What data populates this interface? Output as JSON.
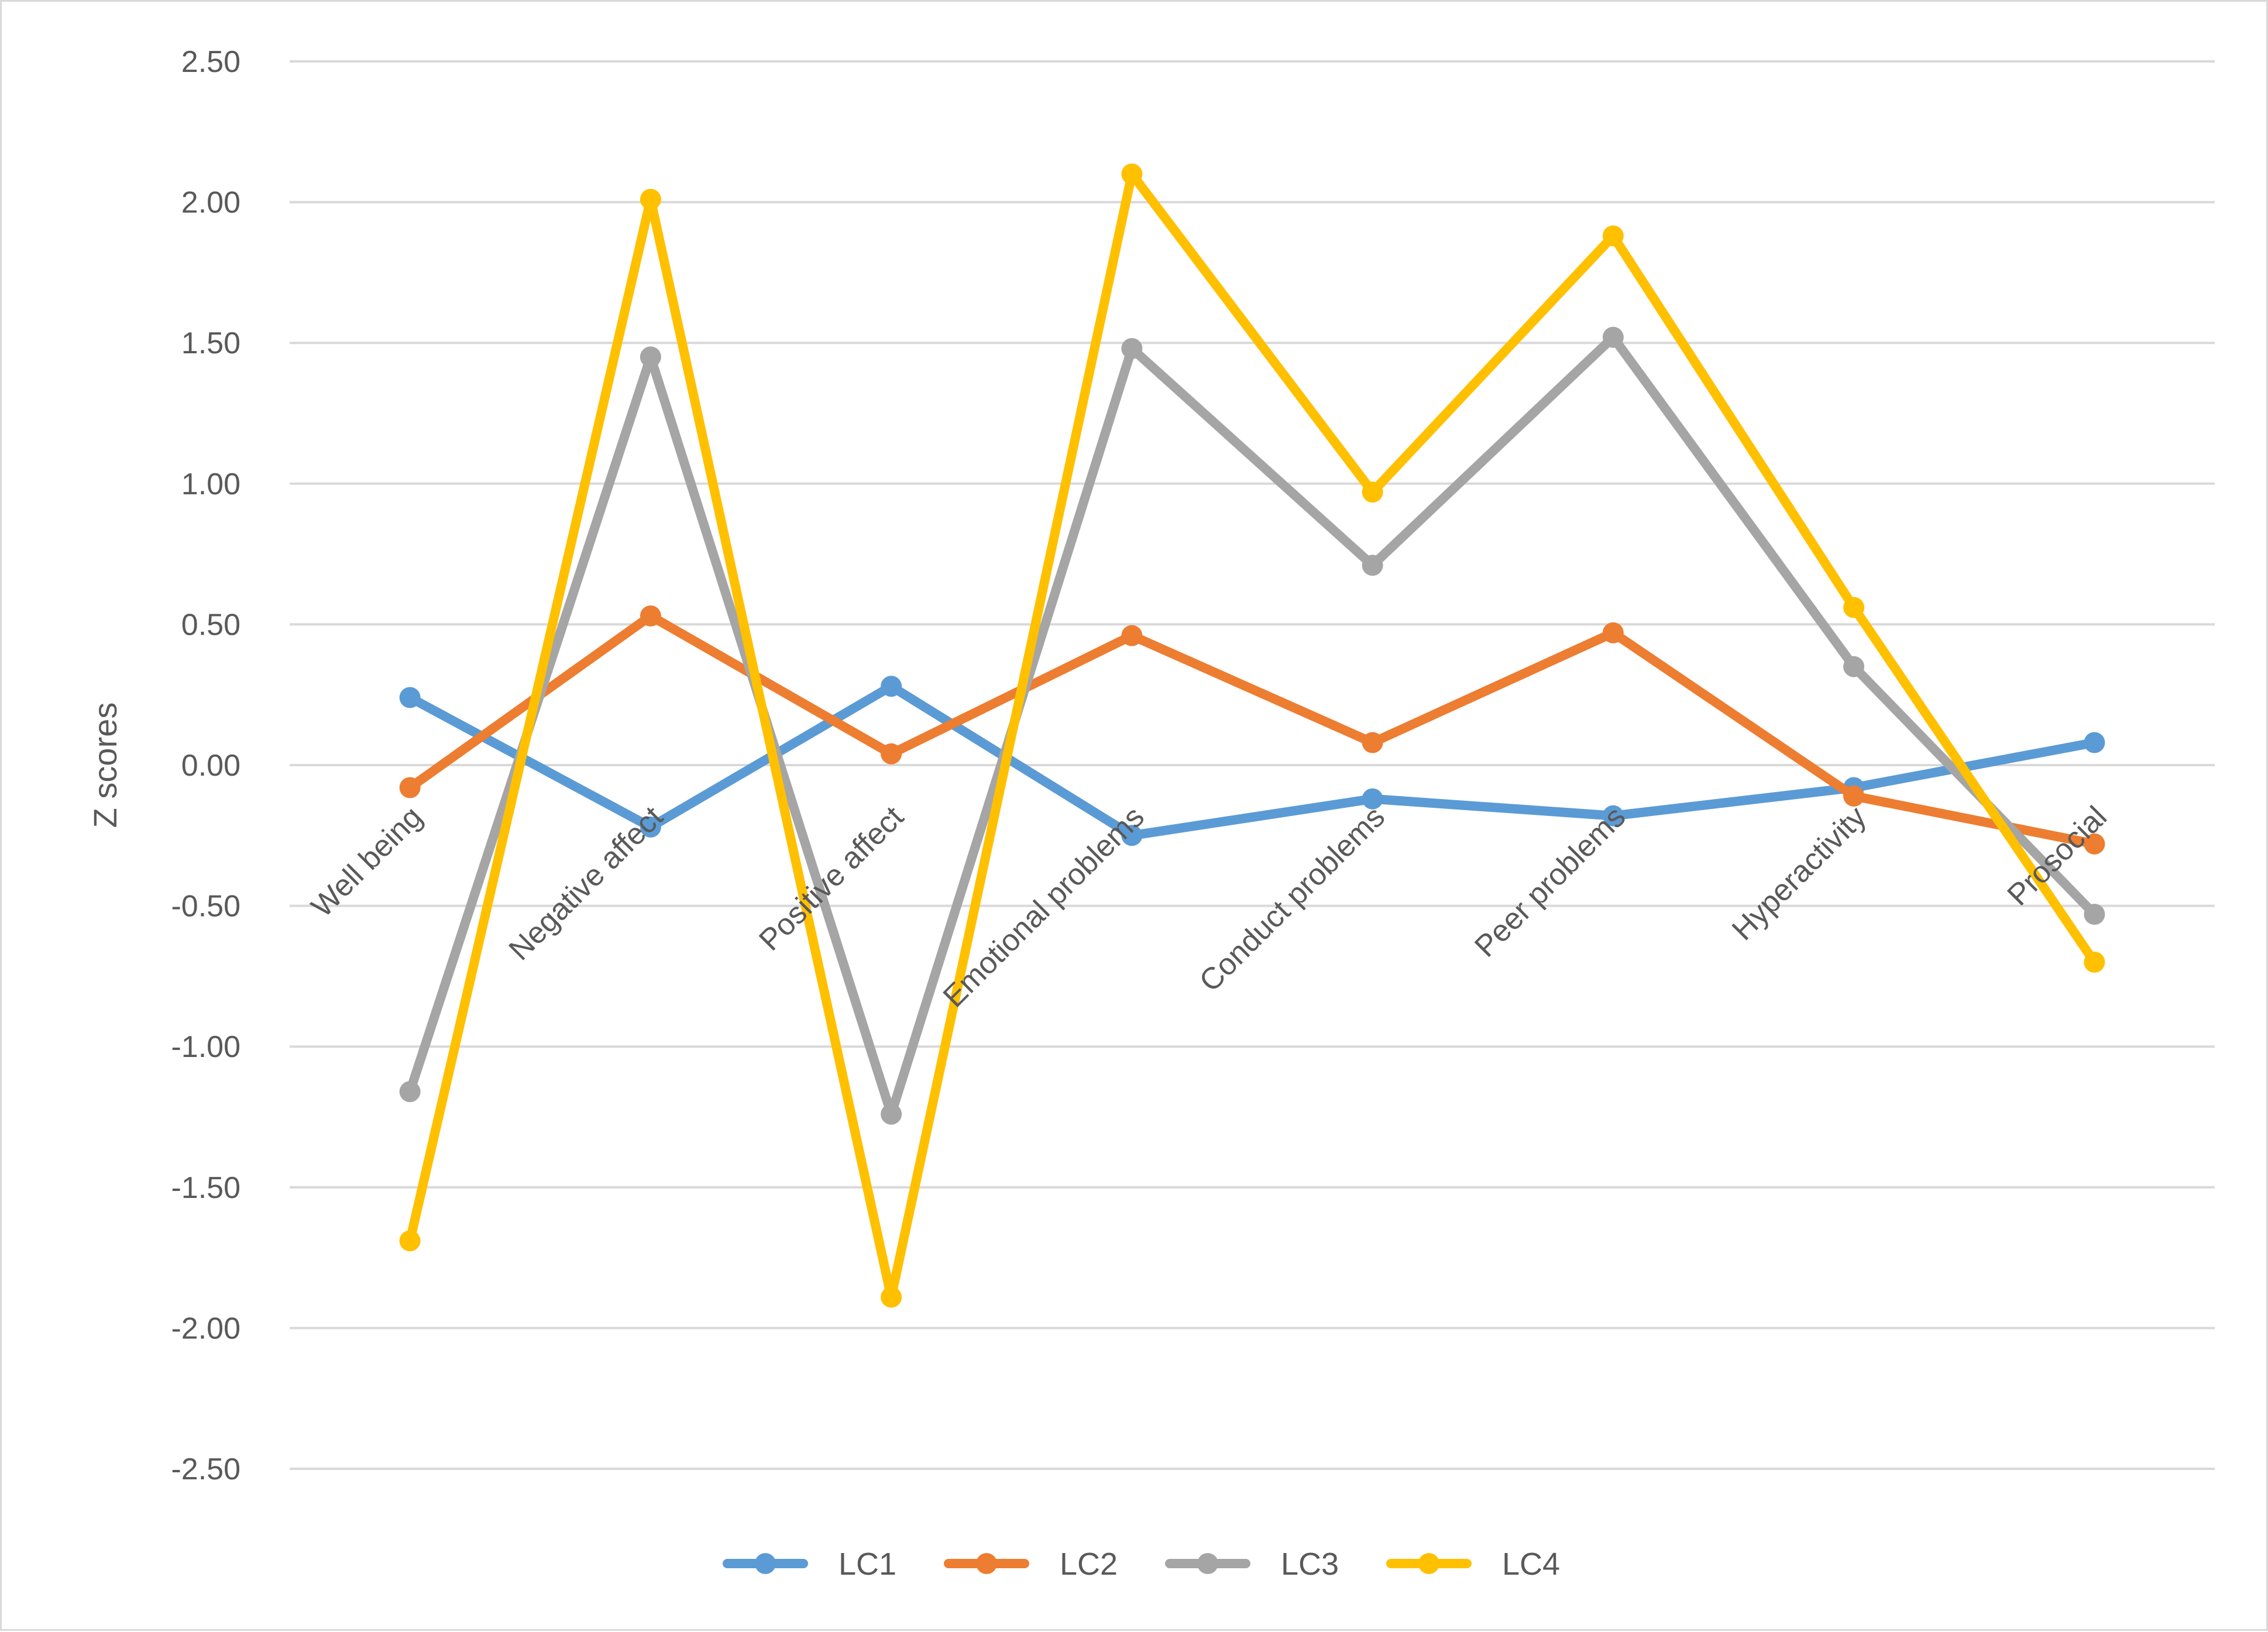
{
  "chart_data": {
    "type": "line",
    "title": "",
    "xlabel": "",
    "ylabel": "Z scores",
    "ylim": [
      -2.5,
      2.5
    ],
    "yticks": [
      "2.50",
      "2.00",
      "1.50",
      "1.00",
      "0.50",
      "0.00",
      "-0.50",
      "-1.00",
      "-1.50",
      "-2.00",
      "-2.50"
    ],
    "ytick_values": [
      2.5,
      2.0,
      1.5,
      1.0,
      0.5,
      0.0,
      -0.5,
      -1.0,
      -1.5,
      -2.0,
      -2.5
    ],
    "grid": true,
    "legend_position": "bottom",
    "categories": [
      "Well being",
      "Negative affect",
      "Positive affect",
      "Emotional problems",
      "Conduct problems",
      "Peer problems",
      "Hyperactivity",
      "Prosocial"
    ],
    "series": [
      {
        "name": "LC1",
        "color": "#5b9bd5",
        "values": [
          0.24,
          -0.22,
          0.28,
          -0.25,
          -0.12,
          -0.18,
          -0.08,
          0.08
        ]
      },
      {
        "name": "LC2",
        "color": "#ed7d31",
        "values": [
          -0.08,
          0.53,
          0.04,
          0.46,
          0.08,
          0.47,
          -0.11,
          -0.28
        ]
      },
      {
        "name": "LC3",
        "color": "#a5a5a5",
        "values": [
          -1.16,
          1.45,
          -1.24,
          1.48,
          0.71,
          1.52,
          0.35,
          -0.53
        ]
      },
      {
        "name": "LC4",
        "color": "#ffc000",
        "values": [
          -1.69,
          2.01,
          -1.89,
          2.1,
          0.97,
          1.88,
          0.56,
          -0.7
        ]
      }
    ]
  }
}
